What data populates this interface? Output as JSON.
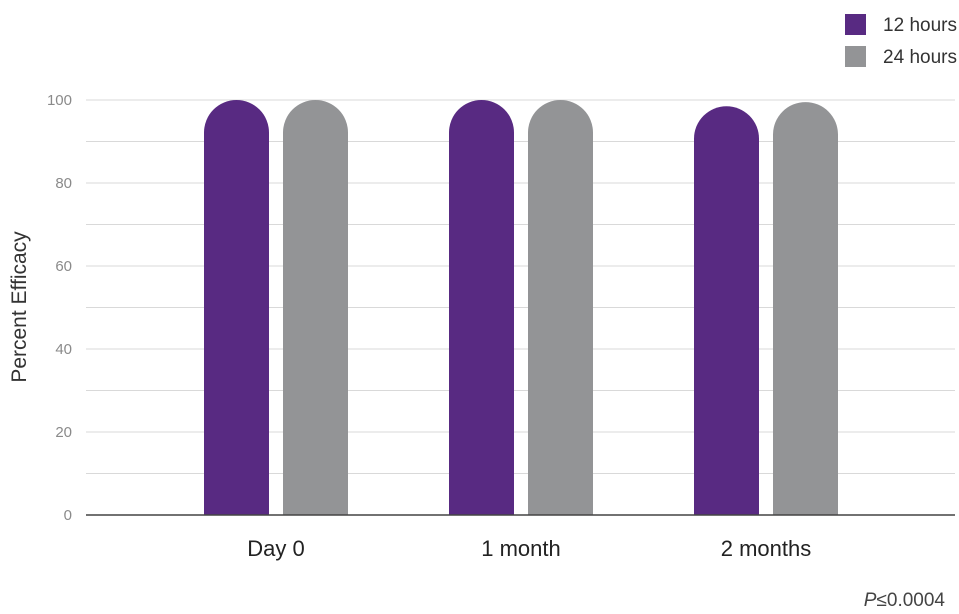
{
  "chart_data": {
    "type": "bar",
    "categories": [
      "Day 0",
      "1 month",
      "2 months"
    ],
    "series": [
      {
        "name": "12 hours",
        "values": [
          100,
          100,
          98.5
        ],
        "color": "#582a82"
      },
      {
        "name": "24 hours",
        "values": [
          100,
          100,
          99.5
        ],
        "color": "#939496"
      }
    ],
    "ylabel": "Percent Efficacy",
    "xlabel": "",
    "ylim": [
      0,
      100
    ],
    "yticks": [
      "0",
      "20",
      "40",
      "60",
      "80",
      "100"
    ],
    "grid": true,
    "legend_position": "top-right",
    "annotation": {
      "italic": "P",
      "rest": "≤0.0004"
    }
  }
}
